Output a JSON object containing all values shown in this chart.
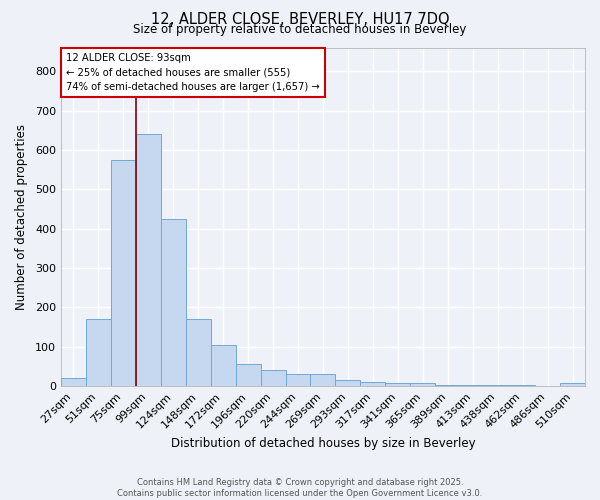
{
  "title": "12, ALDER CLOSE, BEVERLEY, HU17 7DQ",
  "subtitle": "Size of property relative to detached houses in Beverley",
  "xlabel": "Distribution of detached houses by size in Beverley",
  "ylabel": "Number of detached properties",
  "categories": [
    "27sqm",
    "51sqm",
    "75sqm",
    "99sqm",
    "124sqm",
    "148sqm",
    "172sqm",
    "196sqm",
    "220sqm",
    "244sqm",
    "269sqm",
    "293sqm",
    "317sqm",
    "341sqm",
    "365sqm",
    "389sqm",
    "413sqm",
    "438sqm",
    "462sqm",
    "486sqm",
    "510sqm"
  ],
  "values": [
    20,
    170,
    575,
    640,
    425,
    170,
    105,
    57,
    42,
    32,
    30,
    15,
    10,
    8,
    7,
    4,
    3,
    2,
    2,
    1,
    8
  ],
  "bar_color": "#c5d8f0",
  "bar_edge_color": "#6fa8d6",
  "bar_width": 1.0,
  "ylim": [
    0,
    860
  ],
  "yticks": [
    0,
    100,
    200,
    300,
    400,
    500,
    600,
    700,
    800
  ],
  "red_line_x": 2.5,
  "red_line_color": "#8b0000",
  "annotation_text": "12 ALDER CLOSE: 93sqm\n← 25% of detached houses are smaller (555)\n74% of semi-detached houses are larger (1,657) →",
  "annotation_box_color": "#cc0000",
  "background_color": "#eef2f8",
  "grid_color": "#ffffff",
  "footnote": "Contains HM Land Registry data © Crown copyright and database right 2025.\nContains public sector information licensed under the Open Government Licence v3.0."
}
